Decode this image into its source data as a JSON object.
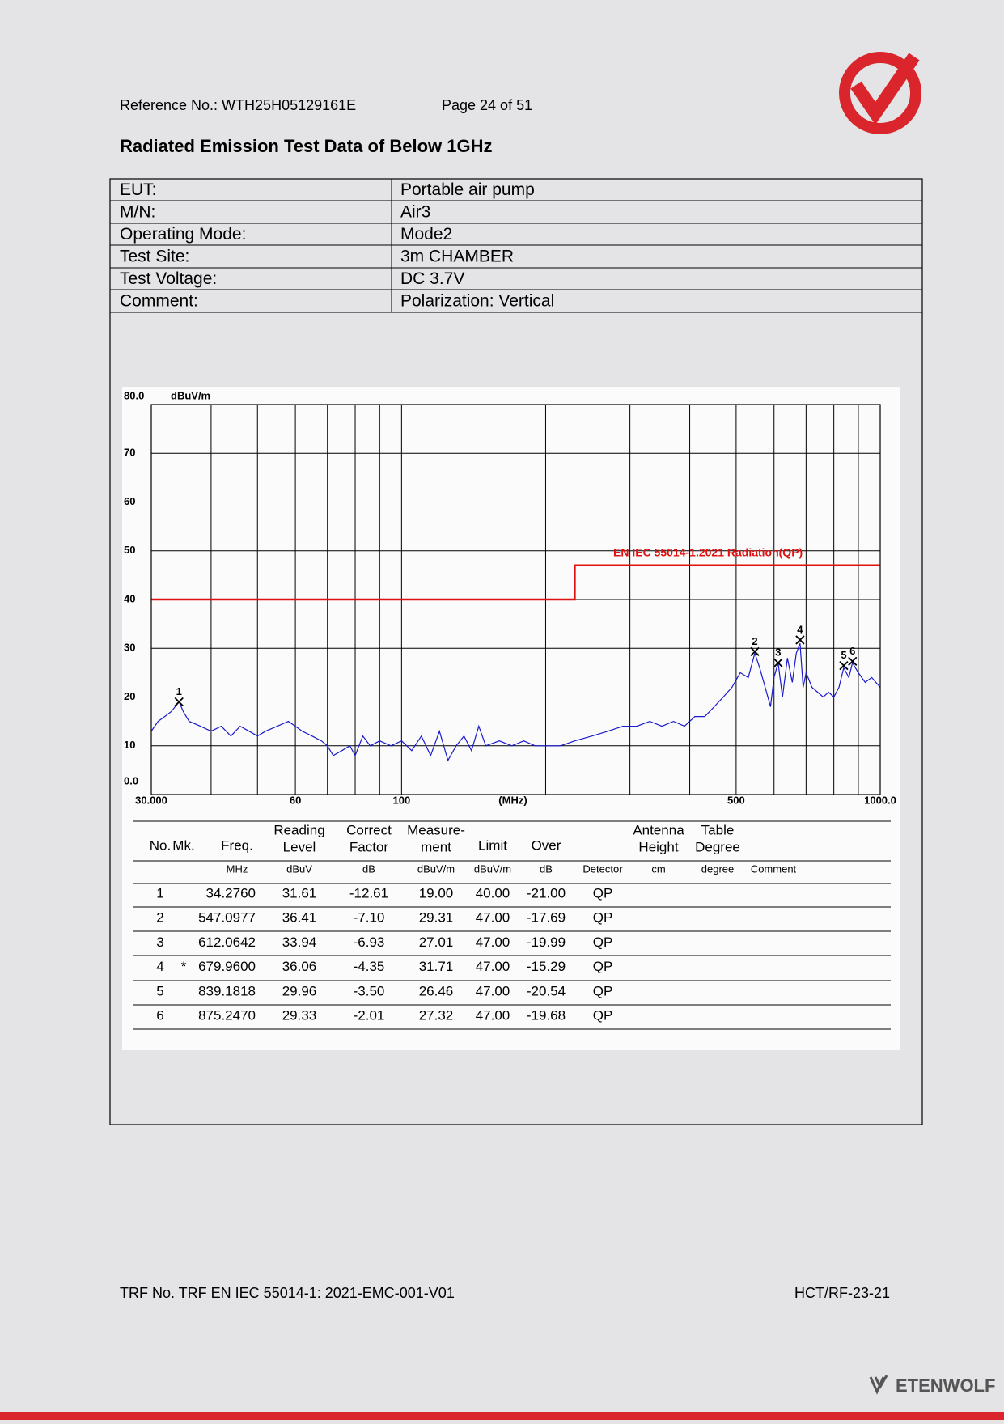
{
  "header": {
    "reference": "Reference No.: WTH25H05129161E",
    "page": "Page 24 of 51"
  },
  "title": "Radiated Emission Test Data of Below 1GHz",
  "info": {
    "rows": [
      [
        "EUT:",
        "Portable air pump"
      ],
      [
        "M/N:",
        "Air3"
      ],
      [
        "Operating Mode:",
        "Mode2"
      ],
      [
        "Test Site:",
        "3m CHAMBER"
      ],
      [
        "Test Voltage:",
        "DC 3.7V"
      ],
      [
        "Comment:",
        "Polarization: Vertical"
      ]
    ]
  },
  "chart_data": {
    "type": "line",
    "log_x": true,
    "grid": true,
    "y_unit": "dBuV/m",
    "x_unit": "(MHz)",
    "xlim": [
      30,
      1000
    ],
    "ylim": [
      0,
      80
    ],
    "xticks": [
      {
        "value": 30,
        "label": "30.000"
      },
      60,
      100,
      500,
      {
        "value": 1000,
        "label": "1000.0"
      }
    ],
    "xgrid": [
      40,
      50,
      70,
      80,
      90,
      200,
      300,
      400,
      600,
      700,
      800,
      900
    ],
    "yticks": [
      {
        "value": 0,
        "label": "0.0"
      },
      10,
      20,
      30,
      40,
      50,
      60,
      70,
      {
        "value": 80,
        "label": "80.0"
      }
    ],
    "series": [
      {
        "name": "EN IEC 55014-1.2021 Radiation(QP)",
        "color": "#e01010",
        "x": [
          30,
          230,
          230,
          1000
        ],
        "values": [
          40,
          40,
          47,
          47
        ]
      },
      {
        "color": "#1a1acc",
        "x": [
          30,
          31,
          32,
          33,
          34.3,
          35,
          36,
          38,
          40,
          42,
          44,
          46,
          48,
          50,
          52,
          55,
          58,
          60,
          62,
          65,
          68,
          70,
          72,
          75,
          78,
          80,
          83,
          86,
          90,
          95,
          100,
          105,
          110,
          115,
          120,
          125,
          130,
          135,
          140,
          145,
          150,
          160,
          170,
          180,
          190,
          200,
          215,
          230,
          250,
          270,
          290,
          310,
          330,
          350,
          370,
          390,
          410,
          430,
          450,
          470,
          490,
          510,
          530,
          547,
          560,
          575,
          590,
          600,
          612,
          625,
          640,
          655,
          668,
          680,
          690,
          700,
          720,
          740,
          760,
          780,
          800,
          820,
          839,
          860,
          875,
          900,
          930,
          960,
          1000
        ],
        "values": [
          13,
          15,
          16,
          17,
          19,
          17,
          15,
          14,
          13,
          14,
          12,
          14,
          13,
          12,
          13,
          14,
          15,
          14,
          13,
          12,
          11,
          10,
          8,
          9,
          10,
          8,
          12,
          10,
          11,
          10,
          11,
          9,
          12,
          8,
          13,
          7,
          10,
          12,
          9,
          14,
          10,
          11,
          10,
          11,
          10,
          10,
          10,
          11,
          12,
          13,
          14,
          14,
          15,
          14,
          15,
          14,
          16,
          16,
          18,
          20,
          22,
          25,
          24,
          29,
          26,
          22,
          18,
          24,
          27,
          20,
          28,
          23,
          29,
          31,
          22,
          25,
          22,
          21,
          20,
          21,
          20,
          22,
          26,
          24,
          27,
          25,
          23,
          24,
          22
        ]
      }
    ],
    "markers": {
      "labels": [
        "1",
        "2",
        "3",
        "4",
        "5",
        "6"
      ],
      "x": [
        34.276,
        547.0977,
        612.0642,
        679.96,
        839.1818,
        875.247
      ],
      "values": [
        19.0,
        29.31,
        27.01,
        31.71,
        26.46,
        27.32
      ]
    }
  },
  "measurements": {
    "columns": [
      {
        "title": [
          "No."
        ]
      },
      {
        "title": [
          "Mk."
        ]
      },
      {
        "title": [
          "Freq."
        ],
        "unit": "MHz"
      },
      {
        "title": [
          "Reading",
          "Level"
        ],
        "unit": "dBuV"
      },
      {
        "title": [
          "Correct",
          "Factor"
        ],
        "unit": "dB"
      },
      {
        "title": [
          "Measure-",
          "ment"
        ],
        "unit": "dBuV/m"
      },
      {
        "title": [
          "Limit"
        ],
        "unit": "dBuV/m"
      },
      {
        "title": [
          "Over"
        ],
        "unit": "dB"
      },
      {
        "unit": "Detector"
      },
      {
        "title": [
          "Antenna",
          "Height"
        ],
        "unit": "cm"
      },
      {
        "title": [
          "Table",
          "Degree"
        ],
        "unit": "degree"
      },
      {
        "unit": "Comment"
      }
    ],
    "rows": [
      [
        "1",
        null,
        "34.2760",
        "31.61",
        "-12.61",
        "19.00",
        "40.00",
        "-21.00",
        "QP"
      ],
      [
        "2",
        null,
        "547.0977",
        "36.41",
        "-7.10",
        "29.31",
        "47.00",
        "-17.69",
        "QP"
      ],
      [
        "3",
        null,
        "612.0642",
        "33.94",
        "-6.93",
        "27.01",
        "47.00",
        "-19.99",
        "QP"
      ],
      [
        "4",
        "*",
        "679.9600",
        "36.06",
        "-4.35",
        "31.71",
        "47.00",
        "-15.29",
        "QP"
      ],
      [
        "5",
        null,
        "839.1818",
        "29.96",
        "-3.50",
        "26.46",
        "47.00",
        "-20.54",
        "QP"
      ],
      [
        "6",
        null,
        "875.2470",
        "29.33",
        "-2.01",
        "27.32",
        "47.00",
        "-19.68",
        "QP"
      ]
    ]
  },
  "footer": {
    "trf": "TRF No. TRF EN IEC 55014-1: 2021-EMC-001-V01",
    "code": "HCT/RF-23-21",
    "brand": "ETENWOLF"
  }
}
